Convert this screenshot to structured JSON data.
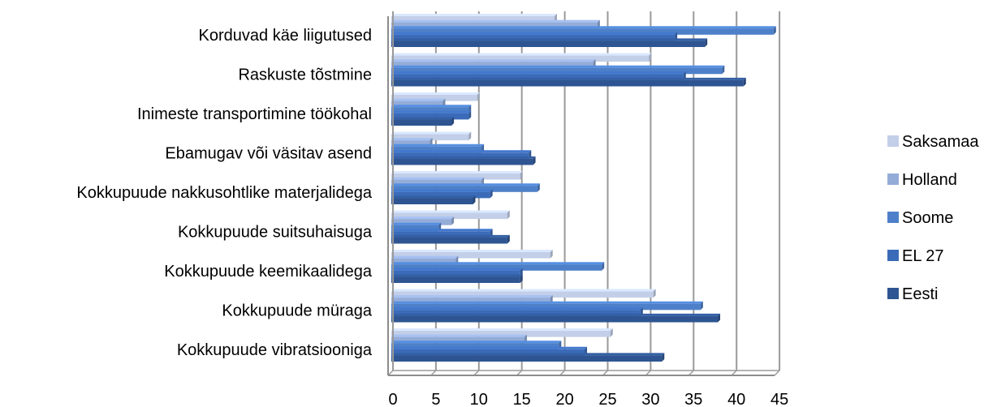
{
  "chart_data": {
    "type": "bar",
    "orientation": "horizontal",
    "style": "3d-clustered",
    "title": "",
    "xlabel": "",
    "ylabel": "",
    "xlim": [
      0,
      45
    ],
    "ticks": [
      "0",
      "5",
      "10",
      "15",
      "20",
      "25",
      "30",
      "35",
      "40",
      "45"
    ],
    "grid": true,
    "legend_position": "right",
    "categories": [
      "Korduvad käe liigutused",
      "Raskuste tõstmine",
      "Inimeste transportimine töökohal",
      "Ebamugav või väsitav asend",
      "Kokkupuude nakkusohtlike materjalidega",
      "Kokkupuude suitsuhaisuga",
      "Kokkupuude keemikaalidega",
      "Kokkupuude müraga",
      "Kokkupuude vibratsiooniga"
    ],
    "series": [
      {
        "name": "Saksamaa",
        "color": "#c3cfe8",
        "values": [
          19,
          30,
          10,
          9,
          15,
          13.5,
          18.5,
          30.5,
          25.5
        ]
      },
      {
        "name": "Holland",
        "color": "#94acd8",
        "values": [
          24,
          23.5,
          6,
          4.5,
          10.5,
          7,
          7.5,
          18.5,
          15.5
        ]
      },
      {
        "name": "Soome",
        "color": "#4d80c9",
        "values": [
          44.5,
          38.5,
          9,
          10.5,
          17,
          5.5,
          24.5,
          36,
          19.5
        ]
      },
      {
        "name": "EL 27",
        "color": "#3b6bb8",
        "values": [
          33,
          34,
          9,
          16,
          11.5,
          11.5,
          15,
          29,
          22.5
        ]
      },
      {
        "name": "Eesti",
        "color": "#2e5592",
        "values": [
          36.5,
          41,
          7,
          16.5,
          9.5,
          13.5,
          15,
          38,
          31.5
        ]
      }
    ]
  }
}
